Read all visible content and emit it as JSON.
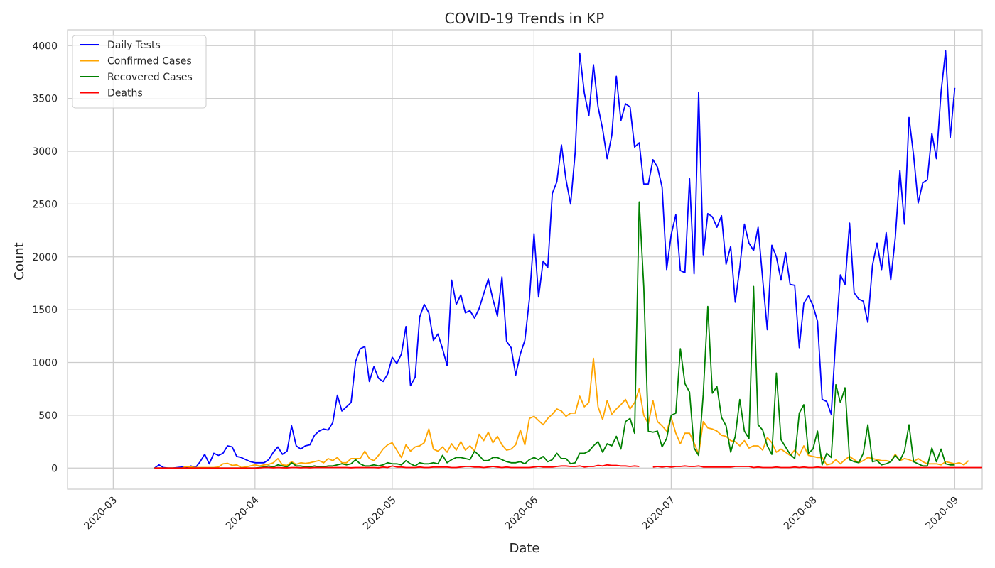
{
  "chart_data": {
    "type": "line",
    "title": "COVID-19 Trends in KP",
    "xlabel": "Date",
    "ylabel": "Count",
    "x_start": "2020-03-10",
    "x_end": "2020-08-31",
    "xlim": [
      "2020-02-20",
      "2020-09-07"
    ],
    "ylim": [
      -200,
      4150
    ],
    "x_ticks": [
      "2020-03",
      "2020-04",
      "2020-05",
      "2020-06",
      "2020-07",
      "2020-08",
      "2020-09"
    ],
    "y_ticks": [
      0,
      500,
      1000,
      1500,
      2000,
      2500,
      3000,
      3500,
      4000
    ],
    "grid": true,
    "legend_position": "top-left",
    "series": [
      {
        "name": "Daily Tests",
        "color": "#0000ff",
        "values": [
          0,
          30,
          5,
          0,
          0,
          5,
          10,
          5,
          20,
          5,
          60,
          130,
          40,
          140,
          120,
          140,
          210,
          200,
          110,
          100,
          80,
          60,
          50,
          50,
          50,
          80,
          150,
          200,
          130,
          160,
          400,
          210,
          180,
          210,
          220,
          310,
          350,
          370,
          360,
          430,
          690,
          540,
          580,
          620,
          1010,
          1130,
          1150,
          820,
          960,
          850,
          820,
          890,
          1050,
          990,
          1080,
          1340,
          780,
          860,
          1430,
          1550,
          1470,
          1210,
          1270,
          1130,
          970,
          1780,
          1550,
          1640,
          1470,
          1490,
          1420,
          1510,
          1650,
          1790,
          1600,
          1440,
          1810,
          1200,
          1140,
          880,
          1080,
          1210,
          1600,
          2220,
          1620,
          1960,
          1900,
          2600,
          2710,
          3060,
          2730,
          2500,
          2990,
          3930,
          3550,
          3340,
          3820,
          3420,
          3210,
          2930,
          3150,
          3710,
          3290,
          3450,
          3420,
          3040,
          3080,
          2690,
          2690,
          2920,
          2850,
          2660,
          1880,
          2210,
          2400,
          1870,
          1850,
          2740,
          1840,
          3560,
          2020,
          2410,
          2380,
          2280,
          2390,
          1930,
          2100,
          1570,
          1900,
          2310,
          2130,
          2060,
          2280,
          1790,
          1310,
          2110,
          2000,
          1780,
          2040,
          1740,
          1730,
          1140,
          1560,
          1630,
          1540,
          1390,
          650,
          630,
          510,
          1250,
          1830,
          1740,
          2320,
          1660,
          1600,
          1580,
          1380,
          1920,
          2130,
          1880,
          2230,
          1780,
          2180,
          2820,
          2310,
          3320,
          2960,
          2510,
          2700,
          2730,
          3170,
          2930,
          3560,
          3950,
          3130,
          3600
        ]
      },
      {
        "name": "Confirmed Cases",
        "color": "#ffa500",
        "values": [
          0,
          0,
          0,
          0,
          0,
          0,
          0,
          15,
          10,
          5,
          5,
          5,
          5,
          5,
          10,
          40,
          45,
          25,
          30,
          5,
          10,
          20,
          30,
          20,
          30,
          35,
          50,
          90,
          30,
          25,
          60,
          35,
          50,
          45,
          50,
          60,
          70,
          50,
          90,
          70,
          100,
          50,
          50,
          90,
          90,
          90,
          160,
          90,
          70,
          120,
          180,
          220,
          240,
          170,
          100,
          220,
          160,
          200,
          210,
          240,
          370,
          180,
          160,
          200,
          150,
          230,
          170,
          250,
          170,
          210,
          160,
          320,
          260,
          340,
          240,
          300,
          220,
          170,
          180,
          220,
          360,
          220,
          470,
          490,
          450,
          410,
          470,
          510,
          560,
          540,
          490,
          520,
          520,
          680,
          580,
          620,
          1040,
          580,
          460,
          640,
          510,
          560,
          600,
          650,
          560,
          620,
          750,
          500,
          420,
          640,
          440,
          400,
          350,
          480,
          330,
          230,
          330,
          330,
          240,
          130,
          440,
          380,
          370,
          350,
          310,
          300,
          260,
          250,
          210,
          260,
          190,
          210,
          210,
          170,
          290,
          240,
          150,
          180,
          150,
          120,
          170,
          120,
          210,
          120,
          110,
          100,
          100,
          30,
          40,
          80,
          40,
          80,
          110,
          80,
          50,
          70,
          100,
          90,
          80,
          70,
          70,
          60,
          130,
          70,
          90,
          80,
          60,
          90,
          60,
          40,
          40,
          40,
          30,
          60,
          50,
          40,
          50,
          30,
          70
        ]
      },
      {
        "name": "Recovered Cases",
        "color": "#008000",
        "values": [
          0,
          0,
          0,
          0,
          0,
          0,
          0,
          0,
          0,
          0,
          0,
          0,
          0,
          0,
          0,
          0,
          0,
          0,
          0,
          0,
          0,
          0,
          0,
          5,
          10,
          20,
          10,
          30,
          20,
          10,
          50,
          20,
          20,
          10,
          10,
          20,
          10,
          10,
          20,
          20,
          30,
          40,
          30,
          40,
          80,
          40,
          20,
          20,
          30,
          20,
          30,
          50,
          40,
          40,
          30,
          70,
          40,
          20,
          50,
          40,
          40,
          50,
          40,
          120,
          50,
          80,
          100,
          100,
          90,
          80,
          160,
          120,
          70,
          70,
          100,
          100,
          80,
          60,
          50,
          50,
          60,
          40,
          80,
          100,
          80,
          110,
          60,
          80,
          140,
          90,
          90,
          40,
          50,
          140,
          140,
          160,
          210,
          250,
          150,
          230,
          210,
          300,
          180,
          440,
          470,
          330,
          2520,
          1720,
          350,
          340,
          350,
          200,
          280,
          500,
          520,
          1130,
          800,
          720,
          190,
          120,
          700,
          1530,
          710,
          770,
          480,
          400,
          150,
          300,
          650,
          350,
          280,
          1720,
          410,
          360,
          210,
          130,
          900,
          270,
          200,
          130,
          90,
          520,
          600,
          140,
          180,
          350,
          30,
          140,
          100,
          790,
          620,
          760,
          80,
          60,
          50,
          140,
          410,
          60,
          70,
          30,
          40,
          60,
          120,
          70,
          160,
          410,
          60,
          40,
          20,
          20,
          190,
          60,
          180,
          40,
          30,
          30
        ]
      },
      {
        "name": "Deaths",
        "color": "#ff0000",
        "values": [
          0,
          0,
          0,
          0,
          0,
          0,
          0,
          0,
          0,
          0,
          0,
          0,
          0,
          0,
          0,
          0,
          0,
          0,
          0,
          0,
          0,
          0,
          0,
          2,
          5,
          5,
          3,
          5,
          3,
          2,
          5,
          5,
          3,
          5,
          3,
          5,
          5,
          5,
          5,
          5,
          5,
          5,
          5,
          3,
          5,
          5,
          5,
          5,
          5,
          3,
          10,
          5,
          20,
          10,
          10,
          5,
          5,
          5,
          10,
          5,
          5,
          10,
          10,
          10,
          10,
          5,
          5,
          10,
          15,
          15,
          10,
          10,
          5,
          10,
          15,
          10,
          5,
          10,
          5,
          5,
          5,
          5,
          5,
          10,
          15,
          10,
          10,
          10,
          15,
          20,
          20,
          15,
          15,
          20,
          10,
          15,
          15,
          25,
          20,
          30,
          25,
          25,
          20,
          20,
          15,
          20,
          15,
          null,
          null,
          10,
          15,
          10,
          15,
          10,
          15,
          15,
          20,
          15,
          15,
          20,
          10,
          10,
          10,
          10,
          10,
          10,
          10,
          15,
          15,
          15,
          15,
          5,
          10,
          5,
          5,
          5,
          10,
          5,
          5,
          5,
          10,
          5,
          10,
          5,
          5,
          10,
          5,
          5,
          5,
          5,
          5,
          5,
          5,
          5,
          5,
          5,
          5,
          5,
          5,
          5,
          5,
          5,
          5,
          5,
          5,
          5,
          5,
          5,
          5,
          5,
          5,
          5,
          5,
          5,
          5,
          5,
          5,
          5,
          5,
          5,
          5,
          5
        ]
      }
    ]
  }
}
